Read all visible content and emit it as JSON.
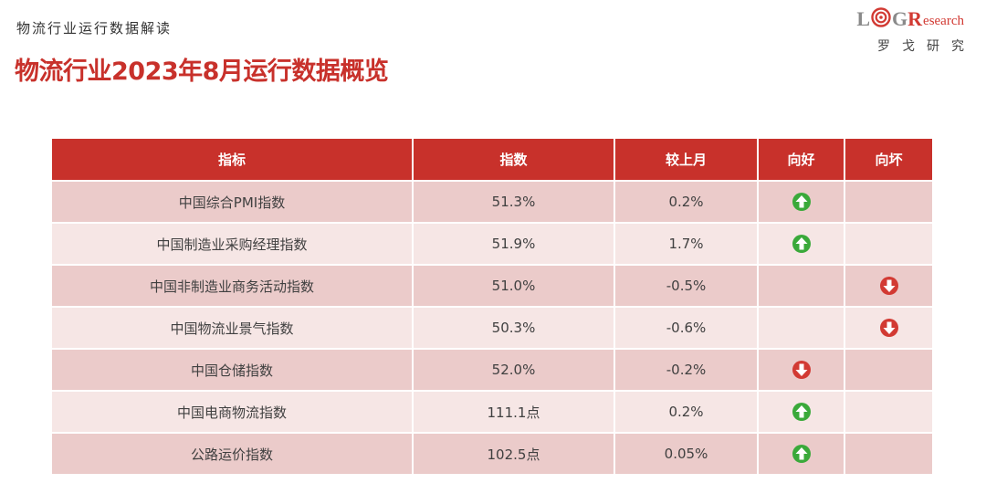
{
  "header": {
    "subtitle": "物流行业运行数据解读",
    "title": "物流行业2023年8月运行数据概览"
  },
  "logo": {
    "letters": [
      "L",
      "G",
      "R"
    ],
    "research": "esearch",
    "chinese": "罗戈研究"
  },
  "colors": {
    "brand_red": "#c8312b",
    "up_green": "#3aa93a",
    "down_red": "#d23a33"
  },
  "table": {
    "headers": [
      "指标",
      "指数",
      "较上月",
      "向好",
      "向坏"
    ],
    "rows": [
      {
        "name": "中国综合PMI指数",
        "index": "51.3%",
        "change": "0.2%",
        "good": "up-arrow-icon",
        "bad": "",
        "good_color": "#3aa93a"
      },
      {
        "name": "中国制造业采购经理指数",
        "index": "51.9%",
        "change": "1.7%",
        "good": "up-arrow-icon",
        "bad": "",
        "good_color": "#3aa93a"
      },
      {
        "name": "中国非制造业商务活动指数",
        "index": "51.0%",
        "change": "-0.5%",
        "good": "",
        "bad": "down-arrow-icon",
        "bad_color": "#d23a33"
      },
      {
        "name": "中国物流业景气指数",
        "index": "50.3%",
        "change": "-0.6%",
        "good": "",
        "bad": "down-arrow-icon",
        "bad_color": "#d23a33"
      },
      {
        "name": "中国仓储指数",
        "index": "52.0%",
        "change": "-0.2%",
        "good": "down-arrow-icon",
        "bad": "",
        "good_color": "#d23a33"
      },
      {
        "name": "中国电商物流指数",
        "index": "111.1点",
        "change": "0.2%",
        "good": "up-arrow-icon",
        "bad": "",
        "good_color": "#3aa93a"
      },
      {
        "name": "公路运价指数",
        "index": "102.5点",
        "change": "0.05%",
        "good": "up-arrow-icon",
        "bad": "",
        "good_color": "#3aa93a"
      }
    ]
  }
}
